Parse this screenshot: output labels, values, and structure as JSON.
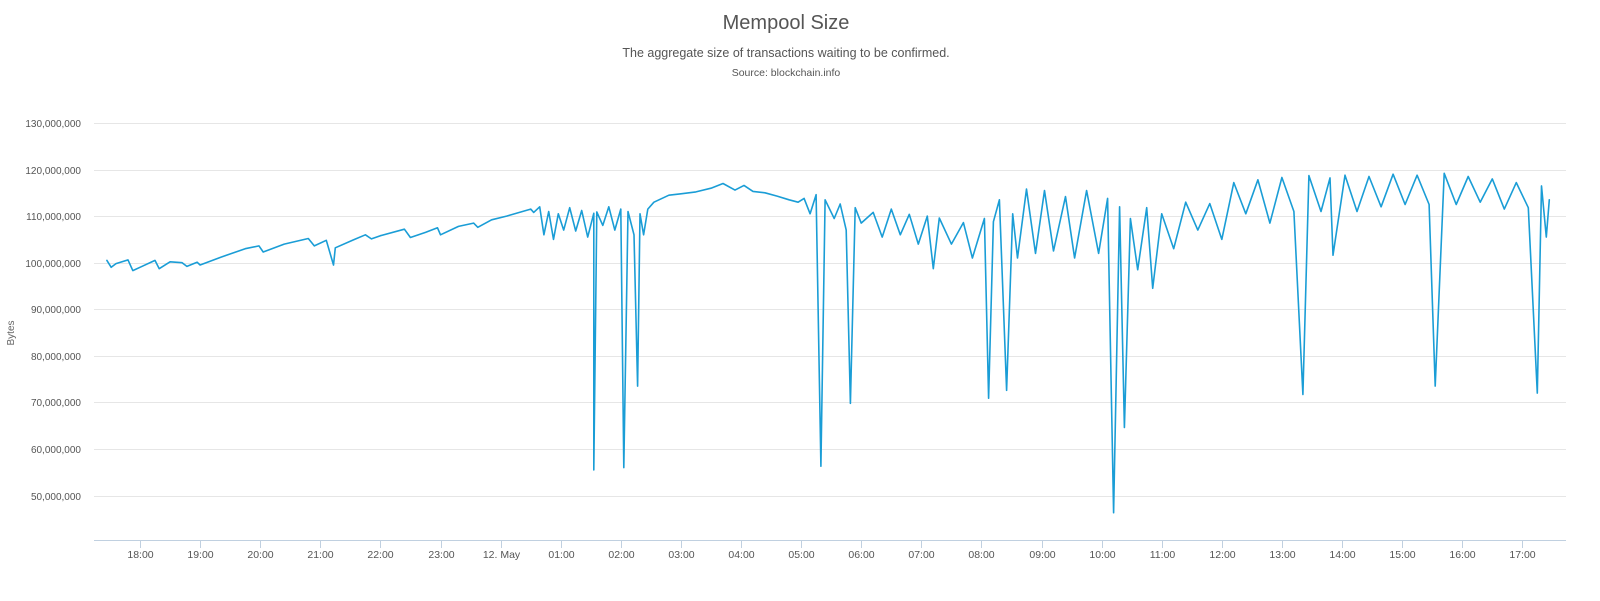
{
  "chart_data": {
    "type": "line",
    "title": "Mempool Size",
    "subtitle": "The aggregate size of transactions waiting to be confirmed.",
    "source": "Source: blockchain.info",
    "ylabel": "Bytes",
    "xlabel": "",
    "ylim": [
      40000000,
      130000000
    ],
    "yticks": [
      "130,000,000",
      "120,000,000",
      "110,000,000",
      "100,000,000",
      "90,000,000",
      "80,000,000",
      "70,000,000",
      "60,000,000",
      "50,000,000"
    ],
    "ytick_values": [
      130000000,
      120000000,
      110000000,
      100000000,
      90000000,
      80000000,
      70000000,
      60000000,
      50000000
    ],
    "x_unit": "hours",
    "xlim": [
      17.25,
      41.6
    ],
    "xticks": [
      "18:00",
      "19:00",
      "20:00",
      "21:00",
      "22:00",
      "23:00",
      "12. May",
      "01:00",
      "02:00",
      "03:00",
      "04:00",
      "05:00",
      "06:00",
      "07:00",
      "08:00",
      "09:00",
      "10:00",
      "11:00",
      "12:00",
      "13:00",
      "14:00",
      "15:00",
      "16:00",
      "17:00"
    ],
    "xtick_values": [
      18,
      19,
      20,
      21,
      22,
      23,
      24,
      25,
      26,
      27,
      28,
      29,
      30,
      31,
      32,
      33,
      34,
      35,
      36,
      37,
      38,
      39,
      40,
      41
    ],
    "grid": true,
    "legend": "none",
    "series": [
      {
        "name": "",
        "color": "#1a9dd6",
        "points": [
          [
            17.45,
            100500000
          ],
          [
            17.52,
            99000000
          ],
          [
            17.6,
            99800000
          ],
          [
            17.8,
            100600000
          ],
          [
            17.88,
            98300000
          ],
          [
            18.0,
            99000000
          ],
          [
            18.25,
            100500000
          ],
          [
            18.32,
            98700000
          ],
          [
            18.5,
            100200000
          ],
          [
            18.7,
            100000000
          ],
          [
            18.78,
            99200000
          ],
          [
            18.95,
            100100000
          ],
          [
            19.0,
            99500000
          ],
          [
            19.35,
            101200000
          ],
          [
            19.75,
            103000000
          ],
          [
            19.98,
            103600000
          ],
          [
            20.05,
            102300000
          ],
          [
            20.4,
            104000000
          ],
          [
            20.8,
            105200000
          ],
          [
            20.9,
            103600000
          ],
          [
            21.1,
            104800000
          ],
          [
            21.22,
            99500000
          ],
          [
            21.25,
            103200000
          ],
          [
            21.55,
            104900000
          ],
          [
            21.75,
            106000000
          ],
          [
            21.85,
            105100000
          ],
          [
            22.0,
            105800000
          ],
          [
            22.4,
            107200000
          ],
          [
            22.5,
            105400000
          ],
          [
            22.75,
            106500000
          ],
          [
            22.95,
            107500000
          ],
          [
            23.0,
            106000000
          ],
          [
            23.3,
            107800000
          ],
          [
            23.55,
            108500000
          ],
          [
            23.62,
            107600000
          ],
          [
            23.85,
            109200000
          ],
          [
            24.1,
            110000000
          ],
          [
            24.5,
            111500000
          ],
          [
            24.55,
            110800000
          ],
          [
            24.65,
            112000000
          ],
          [
            24.72,
            106000000
          ],
          [
            24.8,
            111000000
          ],
          [
            24.88,
            105000000
          ],
          [
            24.96,
            110500000
          ],
          [
            25.05,
            107000000
          ],
          [
            25.15,
            111800000
          ],
          [
            25.25,
            106800000
          ],
          [
            25.35,
            111200000
          ],
          [
            25.45,
            105500000
          ],
          [
            25.55,
            110600000
          ],
          [
            25.55,
            55500000
          ],
          [
            25.6,
            110900000
          ],
          [
            25.7,
            108000000
          ],
          [
            25.8,
            112000000
          ],
          [
            25.9,
            107000000
          ],
          [
            26.0,
            111500000
          ],
          [
            26.05,
            56000000
          ],
          [
            26.12,
            111000000
          ],
          [
            26.22,
            106000000
          ],
          [
            26.28,
            73500000
          ],
          [
            26.32,
            110500000
          ],
          [
            26.38,
            106000000
          ],
          [
            26.45,
            111500000
          ],
          [
            26.55,
            113000000
          ],
          [
            26.8,
            114500000
          ],
          [
            27.0,
            114800000
          ],
          [
            27.25,
            115200000
          ],
          [
            27.5,
            116000000
          ],
          [
            27.7,
            117000000
          ],
          [
            27.9,
            115600000
          ],
          [
            28.05,
            116600000
          ],
          [
            28.2,
            115300000
          ],
          [
            28.4,
            115000000
          ],
          [
            28.6,
            114300000
          ],
          [
            28.8,
            113500000
          ],
          [
            28.95,
            113000000
          ],
          [
            29.05,
            113800000
          ],
          [
            29.15,
            110500000
          ],
          [
            29.25,
            114600000
          ],
          [
            29.33,
            56300000
          ],
          [
            29.4,
            113500000
          ],
          [
            29.55,
            109500000
          ],
          [
            29.65,
            112600000
          ],
          [
            29.75,
            107000000
          ],
          [
            29.82,
            69800000
          ],
          [
            29.9,
            111800000
          ],
          [
            30.0,
            108500000
          ],
          [
            30.2,
            110800000
          ],
          [
            30.35,
            105500000
          ],
          [
            30.5,
            111500000
          ],
          [
            30.65,
            106000000
          ],
          [
            30.8,
            110400000
          ],
          [
            30.95,
            104000000
          ],
          [
            31.1,
            110000000
          ],
          [
            31.2,
            98700000
          ],
          [
            31.3,
            109600000
          ],
          [
            31.5,
            104000000
          ],
          [
            31.7,
            108600000
          ],
          [
            31.85,
            101000000
          ],
          [
            32.05,
            109500000
          ],
          [
            32.12,
            70900000
          ],
          [
            32.2,
            108800000
          ],
          [
            32.3,
            113500000
          ],
          [
            32.42,
            72600000
          ],
          [
            32.52,
            110500000
          ],
          [
            32.6,
            101000000
          ],
          [
            32.75,
            115800000
          ],
          [
            32.9,
            102000000
          ],
          [
            33.05,
            115500000
          ],
          [
            33.2,
            102500000
          ],
          [
            33.4,
            114200000
          ],
          [
            33.55,
            101000000
          ],
          [
            33.75,
            115500000
          ],
          [
            33.95,
            102000000
          ],
          [
            34.1,
            113800000
          ],
          [
            34.2,
            46300000
          ],
          [
            34.3,
            112000000
          ],
          [
            34.38,
            64600000
          ],
          [
            34.48,
            109500000
          ],
          [
            34.6,
            98500000
          ],
          [
            34.75,
            111800000
          ],
          [
            34.85,
            94500000
          ],
          [
            35.0,
            110500000
          ],
          [
            35.2,
            103000000
          ],
          [
            35.4,
            113000000
          ],
          [
            35.6,
            107000000
          ],
          [
            35.8,
            112700000
          ],
          [
            36.0,
            105000000
          ],
          [
            36.2,
            117200000
          ],
          [
            36.4,
            110500000
          ],
          [
            36.6,
            117800000
          ],
          [
            36.8,
            108500000
          ],
          [
            37.0,
            118300000
          ],
          [
            37.2,
            111000000
          ],
          [
            37.35,
            71700000
          ],
          [
            37.45,
            118700000
          ],
          [
            37.65,
            111000000
          ],
          [
            37.8,
            118200000
          ],
          [
            37.85,
            101600000
          ],
          [
            38.05,
            118800000
          ],
          [
            38.25,
            111000000
          ],
          [
            38.45,
            118500000
          ],
          [
            38.65,
            112000000
          ],
          [
            38.85,
            119000000
          ],
          [
            39.05,
            112500000
          ],
          [
            39.25,
            118800000
          ],
          [
            39.45,
            112500000
          ],
          [
            39.55,
            73500000
          ],
          [
            39.7,
            119200000
          ],
          [
            39.9,
            112500000
          ],
          [
            40.1,
            118500000
          ],
          [
            40.3,
            113000000
          ],
          [
            40.5,
            118000000
          ],
          [
            40.7,
            111500000
          ],
          [
            40.9,
            117200000
          ],
          [
            41.1,
            111800000
          ],
          [
            41.25,
            72000000
          ],
          [
            41.32,
            116500000
          ],
          [
            41.4,
            105500000
          ],
          [
            41.45,
            113500000
          ]
        ]
      }
    ]
  }
}
